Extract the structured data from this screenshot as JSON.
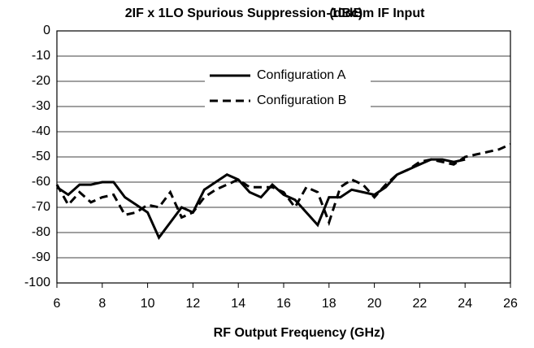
{
  "chart_data": {
    "type": "line",
    "title": "2IF x 1LO Spurious Suppression (dBc)",
    "subtitle": "-10dBm IF Input",
    "x_label": "RF Output Frequency (GHz)",
    "x": [
      6,
      6.5,
      7,
      7.5,
      8,
      8.5,
      9,
      9.5,
      10,
      10.5,
      11,
      11.5,
      12,
      12.5,
      13,
      13.5,
      14,
      14.5,
      15,
      15.5,
      16,
      16.5,
      17,
      17.5,
      18,
      18.5,
      19,
      19.5,
      20,
      20.5,
      21,
      21.5,
      22,
      22.5,
      23,
      23.5,
      24,
      24.5,
      25,
      25.5,
      26
    ],
    "series": [
      {
        "name": "Configuration A",
        "color": "#000000",
        "dash": false,
        "values": [
          -62,
          -65,
          -61,
          -61,
          -60,
          -60,
          -66,
          -69,
          -72,
          -82,
          -76,
          -70,
          -72,
          -63,
          -60,
          -57,
          -59,
          -64,
          -66,
          -61,
          -65,
          -67,
          -72,
          -77,
          -66,
          -66,
          -63,
          -64,
          -65,
          -62,
          -57,
          -55,
          -53,
          -51,
          -51,
          -52,
          -51,
          null,
          null,
          null,
          null
        ]
      },
      {
        "name": "Configuration B",
        "color": "#000000",
        "dash": true,
        "values": [
          -61,
          -69,
          -64,
          -68,
          -66,
          -65,
          -73,
          -72,
          -69,
          -70,
          -64,
          -74,
          -72,
          -66,
          -63,
          -61,
          -59,
          -62,
          -62,
          -62,
          -64,
          -70,
          -62,
          -64,
          -76,
          -62,
          -59,
          -61,
          -66,
          -61,
          -57,
          -55,
          -52,
          -51,
          -52,
          -53,
          -50,
          -49,
          -48,
          -47,
          -45
        ]
      }
    ],
    "xlim": [
      6,
      26
    ],
    "xticks": [
      6,
      8,
      10,
      12,
      14,
      16,
      18,
      20,
      22,
      24,
      26
    ],
    "ylim": [
      -100,
      0
    ],
    "yticks": [
      0,
      -10,
      -20,
      -30,
      -40,
      -50,
      -60,
      -70,
      -80,
      -90,
      -100
    ],
    "grid": true
  }
}
